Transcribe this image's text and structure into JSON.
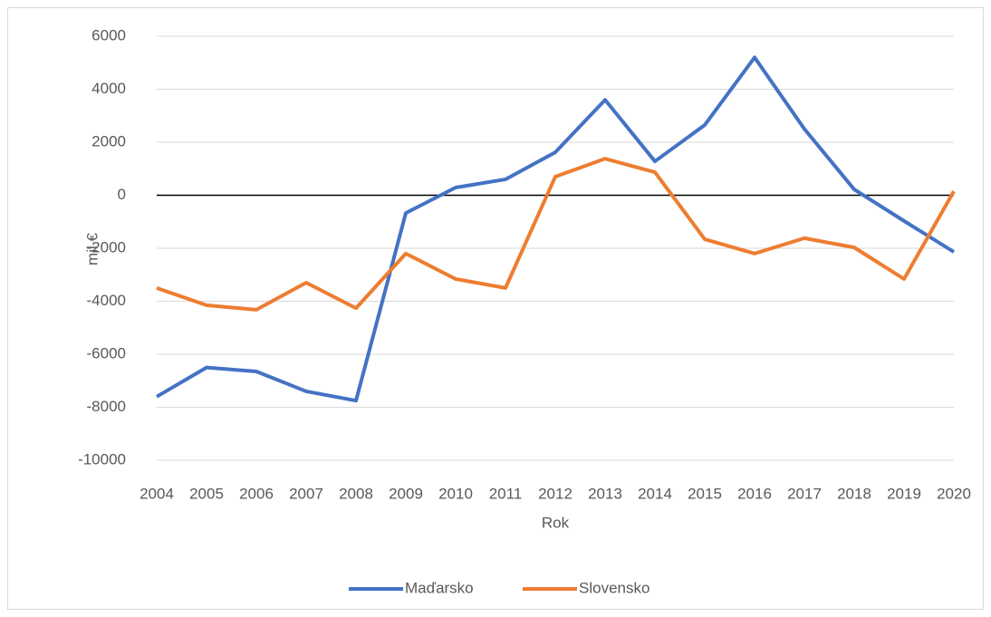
{
  "chart_data": {
    "type": "line",
    "categories": [
      "2004",
      "2005",
      "2006",
      "2007",
      "2008",
      "2009",
      "2010",
      "2011",
      "2012",
      "2013",
      "2014",
      "2015",
      "2016",
      "2017",
      "2018",
      "2019",
      "2020"
    ],
    "series": [
      {
        "name": "Maďarsko",
        "color": "#4472c4",
        "values": [
          -7600,
          -6500,
          -6650,
          -7400,
          -7750,
          -670,
          290,
          600,
          1620,
          3600,
          1280,
          2650,
          5200,
          2500,
          220,
          -970,
          -2140
        ]
      },
      {
        "name": "Slovensko",
        "color": "#ed7d31",
        "values": [
          -3500,
          -4150,
          -4320,
          -3300,
          -4260,
          -2200,
          -3160,
          -3500,
          700,
          1380,
          870,
          -1660,
          -2200,
          -1620,
          -1970,
          -3160,
          150
        ]
      }
    ],
    "ylim": [
      -10000,
      6000
    ],
    "yticks": [
      -10000,
      -8000,
      -6000,
      -4000,
      -2000,
      0,
      2000,
      4000,
      6000
    ],
    "y_label": "mil €",
    "x_label": "Rok",
    "grid": true,
    "legend": "bottom"
  }
}
